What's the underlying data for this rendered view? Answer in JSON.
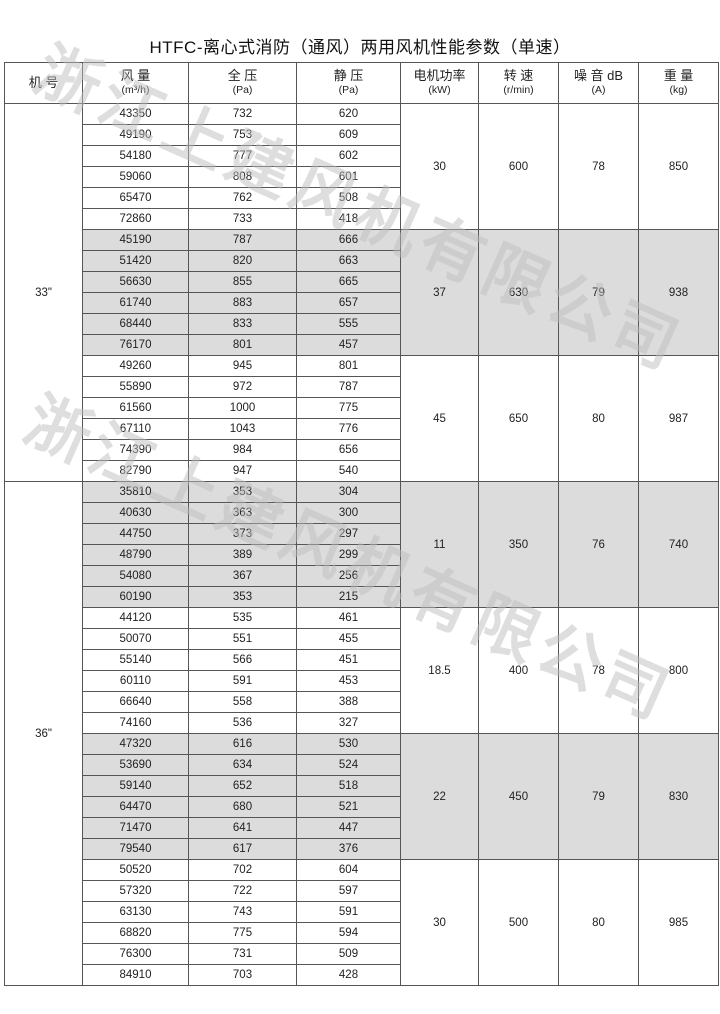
{
  "title": "HTFC-离心式消防（通风）两用风机性能参数（单速）",
  "watermark": "浙江上建风机有限公司",
  "headers": [
    {
      "label": "机 号",
      "unit": ""
    },
    {
      "label": "风 量",
      "unit": "(m³/h)"
    },
    {
      "label": "全 压",
      "unit": "(Pa)"
    },
    {
      "label": "静 压",
      "unit": "(Pa)"
    },
    {
      "label": "电机功率",
      "unit": "(kW)"
    },
    {
      "label": "转 速",
      "unit": "(r/min)"
    },
    {
      "label": "噪 音 dB",
      "unit": "(A)"
    },
    {
      "label": "重 量",
      "unit": "(kg)"
    }
  ],
  "shade_color": "#dcdcdc",
  "models": [
    {
      "model": "33\"",
      "groups": [
        {
          "power": "30",
          "speed": "600",
          "noise": "78",
          "weight": "850",
          "shaded": false,
          "rows": [
            [
              "43350",
              "732",
              "620"
            ],
            [
              "49190",
              "753",
              "609"
            ],
            [
              "54180",
              "777",
              "602"
            ],
            [
              "59060",
              "808",
              "601"
            ],
            [
              "65470",
              "762",
              "508"
            ],
            [
              "72860",
              "733",
              "418"
            ]
          ]
        },
        {
          "power": "37",
          "speed": "630",
          "noise": "79",
          "weight": "938",
          "shaded": true,
          "rows": [
            [
              "45190",
              "787",
              "666"
            ],
            [
              "51420",
              "820",
              "663"
            ],
            [
              "56630",
              "855",
              "665"
            ],
            [
              "61740",
              "883",
              "657"
            ],
            [
              "68440",
              "833",
              "555"
            ],
            [
              "76170",
              "801",
              "457"
            ]
          ]
        },
        {
          "power": "45",
          "speed": "650",
          "noise": "80",
          "weight": "987",
          "shaded": false,
          "rows": [
            [
              "49260",
              "945",
              "801"
            ],
            [
              "55890",
              "972",
              "787"
            ],
            [
              "61560",
              "1000",
              "775"
            ],
            [
              "67110",
              "1043",
              "776"
            ],
            [
              "74390",
              "984",
              "656"
            ],
            [
              "82790",
              "947",
              "540"
            ]
          ]
        }
      ]
    },
    {
      "model": "36\"",
      "groups": [
        {
          "power": "11",
          "speed": "350",
          "noise": "76",
          "weight": "740",
          "shaded": true,
          "rows": [
            [
              "35810",
              "353",
              "304"
            ],
            [
              "40630",
              "363",
              "300"
            ],
            [
              "44750",
              "373",
              "297"
            ],
            [
              "48790",
              "389",
              "299"
            ],
            [
              "54080",
              "367",
              "256"
            ],
            [
              "60190",
              "353",
              "215"
            ]
          ]
        },
        {
          "power": "18.5",
          "speed": "400",
          "noise": "78",
          "weight": "800",
          "shaded": false,
          "rows": [
            [
              "44120",
              "535",
              "461"
            ],
            [
              "50070",
              "551",
              "455"
            ],
            [
              "55140",
              "566",
              "451"
            ],
            [
              "60110",
              "591",
              "453"
            ],
            [
              "66640",
              "558",
              "388"
            ],
            [
              "74160",
              "536",
              "327"
            ]
          ]
        },
        {
          "power": "22",
          "speed": "450",
          "noise": "79",
          "weight": "830",
          "shaded": true,
          "rows": [
            [
              "47320",
              "616",
              "530"
            ],
            [
              "53690",
              "634",
              "524"
            ],
            [
              "59140",
              "652",
              "518"
            ],
            [
              "64470",
              "680",
              "521"
            ],
            [
              "71470",
              "641",
              "447"
            ],
            [
              "79540",
              "617",
              "376"
            ]
          ]
        },
        {
          "power": "30",
          "speed": "500",
          "noise": "80",
          "weight": "985",
          "shaded": false,
          "rows": [
            [
              "50520",
              "702",
              "604"
            ],
            [
              "57320",
              "722",
              "597"
            ],
            [
              "63130",
              "743",
              "591"
            ],
            [
              "68820",
              "775",
              "594"
            ],
            [
              "76300",
              "731",
              "509"
            ],
            [
              "84910",
              "703",
              "428"
            ]
          ]
        }
      ]
    }
  ]
}
